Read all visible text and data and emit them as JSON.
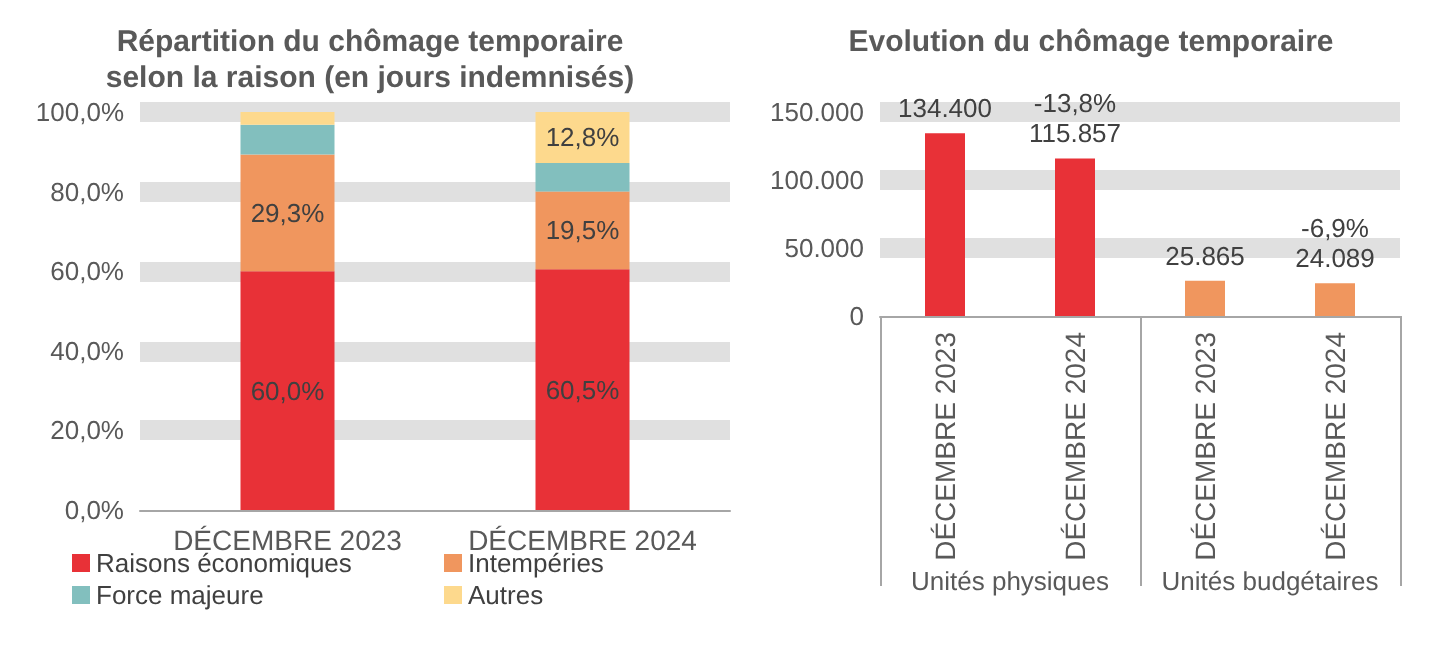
{
  "chart_data": [
    {
      "type": "bar",
      "title": "Répartition du chômage temporaire\nselon la raison (en jours indemnisés)",
      "categories": [
        "DÉCEMBRE 2023",
        "DÉCEMBRE 2024"
      ],
      "stacked": true,
      "series": [
        {
          "name": "Raisons économiques",
          "color": "#e83137",
          "values": [
            60.0,
            60.5
          ],
          "value_labels": [
            "60,0%",
            "60,5%"
          ]
        },
        {
          "name": "Intempéries",
          "color": "#f0965e",
          "values": [
            29.3,
            19.5
          ],
          "value_labels": [
            "29,3%",
            "19,5%"
          ]
        },
        {
          "name": "Force majeure",
          "color": "#82bfbe",
          "values": [
            7.5,
            7.2
          ],
          "value_labels": [
            null,
            null
          ]
        },
        {
          "name": "Autres",
          "color": "#fdd98d",
          "values": [
            3.2,
            12.8
          ],
          "value_labels": [
            null,
            "12,8%"
          ]
        }
      ],
      "ylim": [
        0,
        100
      ],
      "yticks": [
        {
          "value": 0,
          "label": "0,0%"
        },
        {
          "value": 20,
          "label": "20,0%"
        },
        {
          "value": 40,
          "label": "40,0%"
        },
        {
          "value": 60,
          "label": "60,0%"
        },
        {
          "value": 80,
          "label": "80,0%"
        },
        {
          "value": 100,
          "label": "100,0%"
        }
      ],
      "grid": "y",
      "legend": "bottom"
    },
    {
      "type": "bar",
      "title": "Evolution du chômage temporaire",
      "categories": [
        "DÉCEMBRE 2023",
        "DÉCEMBRE 2024",
        "DÉCEMBRE 2023",
        "DÉCEMBRE 2024"
      ],
      "values": [
        134400,
        115857,
        25865,
        24089
      ],
      "colors": [
        "#e83137",
        "#e83137",
        "#f0965e",
        "#f0965e"
      ],
      "value_labels": [
        "134.400",
        "-13,8%\n115.857",
        "25.865",
        "-6,9%\n24.089"
      ],
      "ylim": [
        0,
        150000
      ],
      "yticks": [
        0,
        {
          "value": 50000,
          "label": "50.000"
        },
        {
          "value": 100000,
          "label": "100.000"
        },
        {
          "value": 150000,
          "label": "150.000"
        }
      ],
      "grid": "y",
      "annotations": [
        "Unités physiques",
        "Unités budgétaires"
      ]
    }
  ]
}
